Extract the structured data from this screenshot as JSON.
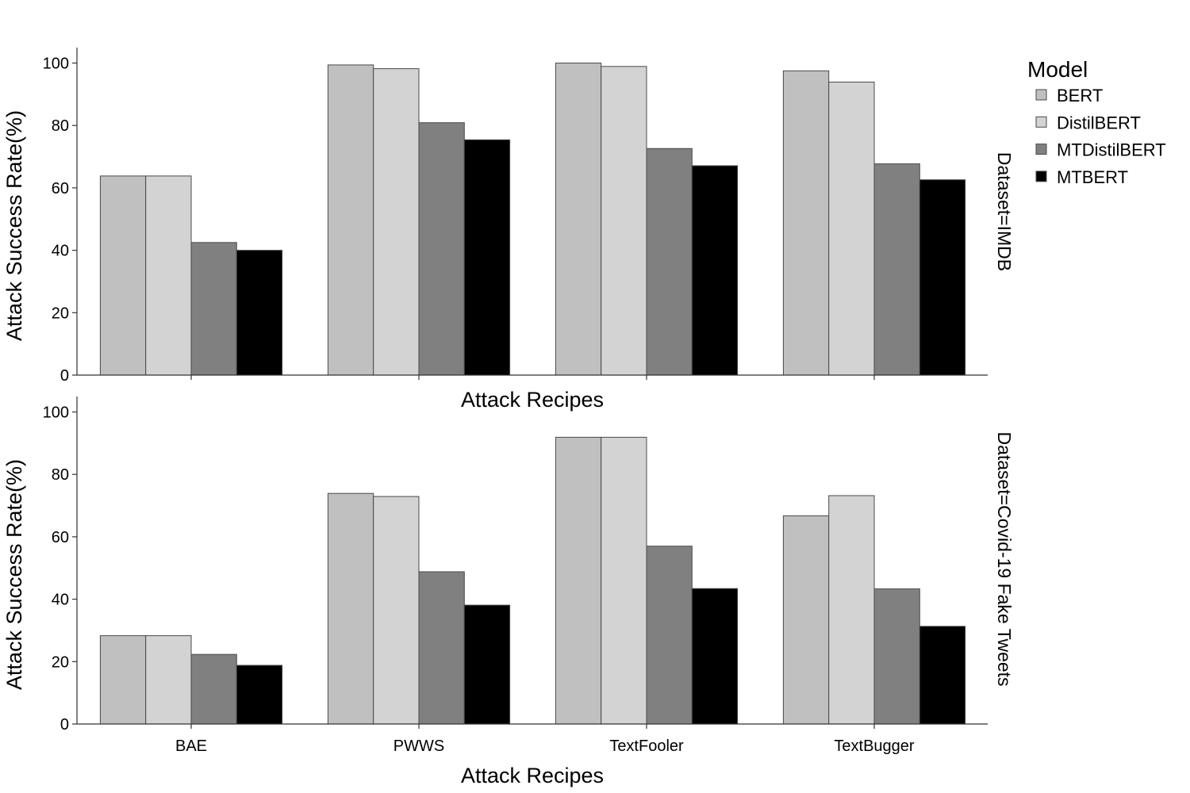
{
  "chart_data": {
    "type": "bar",
    "categories": [
      "BAE",
      "PWWS",
      "TextFooler",
      "TextBugger"
    ],
    "xlabel": "Attack Recipes",
    "ylabel": "Attack Success Rate(%)",
    "ylim": [
      0,
      105
    ],
    "yticks": [
      0,
      20,
      40,
      60,
      80,
      100
    ],
    "grid": false,
    "legend": {
      "title": "Model",
      "placement": "right",
      "entries": [
        {
          "name": "BERT",
          "color": "#c0c0c0"
        },
        {
          "name": "DistilBERT",
          "color": "#d3d3d3"
        },
        {
          "name": "MTDistilBERT",
          "color": "#808080"
        },
        {
          "name": "MTBERT",
          "color": "#000000"
        }
      ]
    },
    "panels": [
      {
        "facet_label": "Dataset=IMDB",
        "series": [
          {
            "name": "BERT",
            "values": [
              63.8,
              99.4,
              100.0,
              97.5
            ]
          },
          {
            "name": "DistilBERT",
            "values": [
              63.8,
              98.2,
              98.9,
              93.9
            ]
          },
          {
            "name": "MTDistilBERT",
            "values": [
              42.5,
              80.9,
              72.6,
              67.7
            ]
          },
          {
            "name": "MTBERT",
            "values": [
              40.0,
              75.4,
              67.1,
              62.6
            ]
          }
        ]
      },
      {
        "facet_label": "Dataset=Covid-19 Fake Tweets",
        "series": [
          {
            "name": "BERT",
            "values": [
              28.3,
              73.9,
              91.9,
              66.7
            ]
          },
          {
            "name": "DistilBERT",
            "values": [
              28.3,
              72.9,
              91.9,
              73.2
            ]
          },
          {
            "name": "MTDistilBERT",
            "values": [
              22.3,
              48.8,
              57.0,
              43.3
            ]
          },
          {
            "name": "MTBERT",
            "values": [
              18.8,
              38.1,
              43.4,
              31.3
            ]
          }
        ]
      }
    ]
  }
}
